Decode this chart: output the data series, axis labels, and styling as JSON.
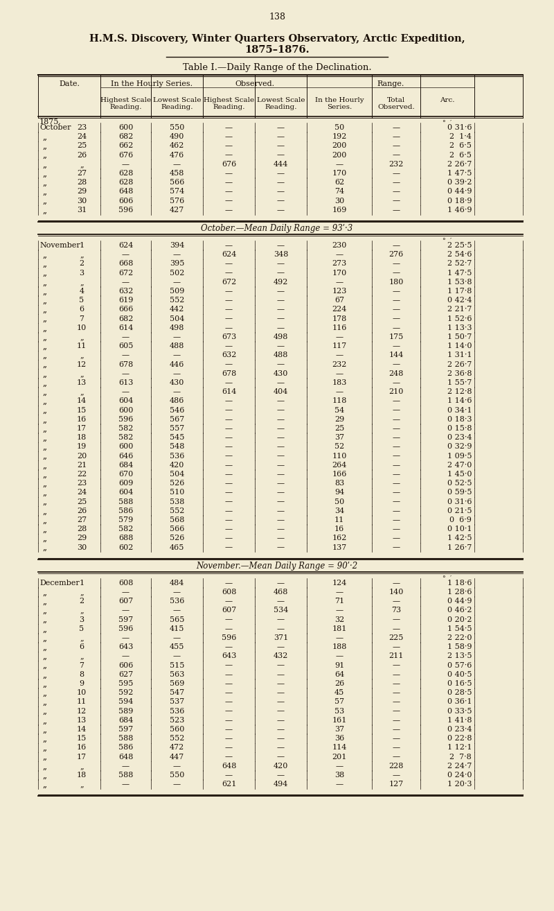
{
  "page_number": "138",
  "title_line1": "H.M.S. Discovery, Winter Quarters Observatory, Arctic Expedition,",
  "title_line2": "1875–1876.",
  "table_title": "Table I.—Daily Range of the Declination.",
  "bg_color": "#f2ecd5",
  "text_color": "#1a1008",
  "october_mean": "October.—Mean Daily Range = 93ʹ·3",
  "november_mean": "November.—Mean Daily Range = 90ʹ·2",
  "october_rows": [
    [
      "October",
      "23",
      "600",
      "550",
      "—",
      "—",
      "50",
      "—",
      "0 31·6"
    ],
    [
      "„",
      "24",
      "682",
      "490",
      "—",
      "—",
      "192",
      "—",
      "2  1·4"
    ],
    [
      "„",
      "25",
      "662",
      "462",
      "—",
      "—",
      "200",
      "—",
      "2  6·5"
    ],
    [
      "„",
      "26",
      "676",
      "476",
      "—",
      "—",
      "200",
      "—",
      "2  6·5"
    ],
    [
      "„",
      "„",
      "—",
      "—",
      "676",
      "444",
      "—",
      "232",
      "2 26·7"
    ],
    [
      "„",
      "27",
      "628",
      "458",
      "—",
      "—",
      "170",
      "—",
      "1 47·5"
    ],
    [
      "„",
      "28",
      "628",
      "566",
      "—",
      "—",
      "62",
      "—",
      "0 39·2"
    ],
    [
      "„",
      "29",
      "648",
      "574",
      "—",
      "—",
      "74",
      "—",
      "0 44·9"
    ],
    [
      "„",
      "30",
      "606",
      "576",
      "—",
      "—",
      "30",
      "—",
      "0 18·9"
    ],
    [
      "„",
      "31",
      "596",
      "427",
      "—",
      "—",
      "169",
      "—",
      "1 46·9"
    ]
  ],
  "november_rows": [
    [
      "November",
      "1",
      "624",
      "394",
      "—",
      "—",
      "230",
      "—",
      "2 25·5"
    ],
    [
      "„",
      "„",
      "—",
      "—",
      "624",
      "348",
      "—",
      "276",
      "2 54·6"
    ],
    [
      "„",
      "2",
      "668",
      "395",
      "—",
      "—",
      "273",
      "—",
      "2 52·7"
    ],
    [
      "„",
      "3",
      "672",
      "502",
      "—",
      "—",
      "170",
      "—",
      "1 47·5"
    ],
    [
      "„",
      "„",
      "—",
      "—",
      "672",
      "492",
      "—",
      "180",
      "1 53·8"
    ],
    [
      "„",
      "4",
      "632",
      "509",
      "—",
      "—",
      "123",
      "—",
      "1 17·8"
    ],
    [
      "„",
      "5",
      "619",
      "552",
      "—",
      "—",
      "67",
      "—",
      "0 42·4"
    ],
    [
      "„",
      "6",
      "666",
      "442",
      "—",
      "—",
      "224",
      "—",
      "2 21·7"
    ],
    [
      "„",
      "7",
      "682",
      "504",
      "—",
      "—",
      "178",
      "—",
      "1 52·6"
    ],
    [
      "„",
      "10",
      "614",
      "498",
      "—",
      "—",
      "116",
      "—",
      "1 13·3"
    ],
    [
      "„",
      "„",
      "—",
      "—",
      "673",
      "498",
      "—",
      "175",
      "1 50·7"
    ],
    [
      "„",
      "11",
      "605",
      "488",
      "—",
      "—",
      "117",
      "—",
      "1 14·0"
    ],
    [
      "„",
      "„",
      "—",
      "—",
      "632",
      "488",
      "—",
      "144",
      "1 31·1"
    ],
    [
      "„",
      "12",
      "678",
      "446",
      "—",
      "—",
      "232",
      "—",
      "2 26·7"
    ],
    [
      "„",
      "„",
      "—",
      "—",
      "678",
      "430",
      "—",
      "248",
      "2 36·8"
    ],
    [
      "„",
      "13",
      "613",
      "430",
      "—",
      "—",
      "183",
      "—",
      "1 55·7"
    ],
    [
      "„",
      "„",
      "—",
      "—",
      "614",
      "404",
      "—",
      "210",
      "2 12·8"
    ],
    [
      "„",
      "14",
      "604",
      "486",
      "—",
      "—",
      "118",
      "—",
      "1 14·6"
    ],
    [
      "„",
      "15",
      "600",
      "546",
      "—",
      "—",
      "54",
      "—",
      "0 34·1"
    ],
    [
      "„",
      "16",
      "596",
      "567",
      "—",
      "—",
      "29",
      "—",
      "0 18·3"
    ],
    [
      "„",
      "17",
      "582",
      "557",
      "—",
      "—",
      "25",
      "—",
      "0 15·8"
    ],
    [
      "„",
      "18",
      "582",
      "545",
      "—",
      "—",
      "37",
      "—",
      "0 23·4"
    ],
    [
      "„",
      "19",
      "600",
      "548",
      "—",
      "—",
      "52",
      "—",
      "0 32·9"
    ],
    [
      "„",
      "20",
      "646",
      "536",
      "—",
      "—",
      "110",
      "—",
      "1 09·5"
    ],
    [
      "„",
      "21",
      "684",
      "420",
      "—",
      "—",
      "264",
      "—",
      "2 47·0"
    ],
    [
      "„",
      "22",
      "670",
      "504",
      "—",
      "—",
      "166",
      "—",
      "1 45·0"
    ],
    [
      "„",
      "23",
      "609",
      "526",
      "—",
      "—",
      "83",
      "—",
      "0 52·5"
    ],
    [
      "„",
      "24",
      "604",
      "510",
      "—",
      "—",
      "94",
      "—",
      "0 59·5"
    ],
    [
      "„",
      "25",
      "588",
      "538",
      "—",
      "—",
      "50",
      "—",
      "0 31·6"
    ],
    [
      "„",
      "26",
      "586",
      "552",
      "—",
      "—",
      "34",
      "—",
      "0 21·5"
    ],
    [
      "„",
      "27",
      "579",
      "568",
      "—",
      "—",
      "11",
      "—",
      "0  6·9"
    ],
    [
      "„",
      "28",
      "582",
      "566",
      "—",
      "—",
      "16",
      "—",
      "0 10·1"
    ],
    [
      "„",
      "29",
      "688",
      "526",
      "—",
      "—",
      "162",
      "—",
      "1 42·5"
    ],
    [
      "„",
      "30",
      "602",
      "465",
      "—",
      "—",
      "137",
      "—",
      "1 26·7"
    ]
  ],
  "december_rows": [
    [
      "December",
      "1",
      "608",
      "484",
      "—",
      "—",
      "124",
      "—",
      "1 18·6"
    ],
    [
      "„",
      "„",
      "—",
      "—",
      "608",
      "468",
      "—",
      "140",
      "1 28·6"
    ],
    [
      "„",
      "2",
      "607",
      "536",
      "—",
      "—",
      "71",
      "—",
      "0 44·9"
    ],
    [
      "„",
      "„",
      "—",
      "—",
      "607",
      "534",
      "—",
      "73",
      "0 46·2"
    ],
    [
      "„",
      "3",
      "597",
      "565",
      "—",
      "—",
      "32",
      "—",
      "0 20·2"
    ],
    [
      "„",
      "5",
      "596",
      "415",
      "—",
      "—",
      "181",
      "—",
      "1 54·5"
    ],
    [
      "„",
      "„",
      "—",
      "—",
      "596",
      "371",
      "—",
      "225",
      "2 22·0"
    ],
    [
      "„",
      "6",
      "643",
      "455",
      "—",
      "—",
      "188",
      "—",
      "1 58·9"
    ],
    [
      "„",
      "„",
      "—",
      "—",
      "643",
      "432",
      "—",
      "211",
      "2 13·5"
    ],
    [
      "„",
      "7",
      "606",
      "515",
      "—",
      "—",
      "91",
      "—",
      "0 57·6"
    ],
    [
      "„",
      "8",
      "627",
      "563",
      "—",
      "—",
      "64",
      "—",
      "0 40·5"
    ],
    [
      "„",
      "9",
      "595",
      "569",
      "—",
      "—",
      "26",
      "—",
      "0 16·5"
    ],
    [
      "„",
      "10",
      "592",
      "547",
      "—",
      "—",
      "45",
      "—",
      "0 28·5"
    ],
    [
      "„",
      "11",
      "594",
      "537",
      "—",
      "—",
      "57",
      "—",
      "0 36·1"
    ],
    [
      "„",
      "12",
      "589",
      "536",
      "—",
      "—",
      "53",
      "—",
      "0 33·5"
    ],
    [
      "„",
      "13",
      "684",
      "523",
      "—",
      "—",
      "161",
      "—",
      "1 41·8"
    ],
    [
      "„",
      "14",
      "597",
      "560",
      "—",
      "—",
      "37",
      "—",
      "0 23·4"
    ],
    [
      "„",
      "15",
      "588",
      "552",
      "—",
      "—",
      "36",
      "—",
      "0 22·8"
    ],
    [
      "„",
      "16",
      "586",
      "472",
      "—",
      "—",
      "114",
      "—",
      "1 12·1"
    ],
    [
      "„",
      "17",
      "648",
      "447",
      "—",
      "—",
      "201",
      "—",
      "2  7·8"
    ],
    [
      "„",
      "„",
      "—",
      "—",
      "648",
      "420",
      "—",
      "228",
      "2 24·7"
    ],
    [
      "„",
      "18",
      "588",
      "550",
      "—",
      "—",
      "38",
      "—",
      "0 24·0"
    ],
    [
      "„",
      "„",
      "—",
      "—",
      "621",
      "494",
      "—",
      "127",
      "1 20·3"
    ]
  ]
}
